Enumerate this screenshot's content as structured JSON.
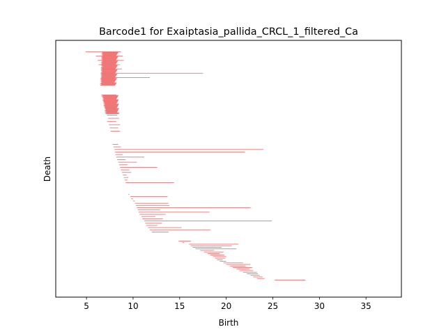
{
  "chart_data": {
    "type": "barcode",
    "title": "Barcode1 for Exaiptasia_pallida_CRCL_1_filtered_Ca",
    "xlabel": "Birth",
    "ylabel": "Death",
    "xlim": [
      1.7,
      38.8
    ],
    "xticks": [
      5,
      10,
      15,
      20,
      25,
      30,
      35
    ],
    "grid": false,
    "bar_color": "#f07474",
    "bars_top_to_bottom": {
      "cluster1_bulk": {
        "count": 70,
        "birth_start": 6.7,
        "birth_end": 6.55,
        "death_start": 8.3,
        "death_end": 8.1
      },
      "cluster1_extras": [
        {
          "birth": 4.9,
          "death": 8.7
        },
        {
          "birth": 6.0,
          "death": 8.9
        },
        {
          "birth": 6.2,
          "death": 9.0
        },
        {
          "birth": 6.3,
          "death": 8.6
        },
        {
          "birth": 6.7,
          "death": 8.8
        },
        {
          "birth": 6.8,
          "death": 17.5
        },
        {
          "birth": 6.6,
          "death": 11.8
        }
      ],
      "cluster2_bulk": {
        "count": 40,
        "birth_start": 6.7,
        "birth_end": 7.1,
        "death_start": 8.3,
        "death_end": 8.4
      },
      "cluster2_sparse": [
        {
          "birth": 7.2,
          "death": 8.3
        },
        {
          "birth": 7.3,
          "death": 8.5
        },
        {
          "birth": 7.2,
          "death": 8.2
        },
        {
          "birth": 7.4,
          "death": 8.6
        },
        {
          "birth": 7.5,
          "death": 8.4
        },
        {
          "birth": 7.6,
          "death": 8.6
        }
      ],
      "cluster3_bars": [
        {
          "birth": 7.8,
          "death": 8.4
        },
        {
          "birth": 7.9,
          "death": 8.7
        },
        {
          "birth": 8.0,
          "death": 24.0
        },
        {
          "birth": 8.05,
          "death": 22.0
        },
        {
          "birth": 8.1,
          "death": 8.9
        },
        {
          "birth": 8.2,
          "death": 11.2
        },
        {
          "birth": 8.3,
          "death": 9.2
        },
        {
          "birth": 8.4,
          "death": 10.4
        },
        {
          "birth": 8.5,
          "death": 9.4
        },
        {
          "birth": 8.6,
          "death": 12.6
        },
        {
          "birth": 8.7,
          "death": 9.6
        },
        {
          "birth": 8.8,
          "death": 9.8
        },
        {
          "birth": 8.9,
          "death": 9.3
        },
        {
          "birth": 9.0,
          "death": 9.5
        },
        {
          "birth": 9.1,
          "death": 9.4
        },
        {
          "birth": 9.2,
          "death": 14.4
        }
      ],
      "cluster4_bars": [
        {
          "birth": 9.5,
          "death": 9.6
        },
        {
          "birth": 9.7,
          "death": 13.7
        },
        {
          "birth": 9.8,
          "death": 10.0
        },
        {
          "birth": 10.0,
          "death": 10.2
        },
        {
          "birth": 10.2,
          "death": 13.8
        },
        {
          "birth": 10.3,
          "death": 13.9
        },
        {
          "birth": 10.4,
          "death": 22.6
        },
        {
          "birth": 10.5,
          "death": 12.9
        },
        {
          "birth": 10.6,
          "death": 18.2
        },
        {
          "birth": 10.7,
          "death": 13.5
        },
        {
          "birth": 10.9,
          "death": 12.4
        },
        {
          "birth": 11.0,
          "death": 13.2
        },
        {
          "birth": 11.2,
          "death": 24.9
        },
        {
          "birth": 11.3,
          "death": 13.1
        },
        {
          "birth": 11.4,
          "death": 12.6
        },
        {
          "birth": 11.6,
          "death": 15.2
        },
        {
          "birth": 11.8,
          "death": 18.3
        },
        {
          "birth": 12.0,
          "death": 13.8
        }
      ],
      "cluster5_bars": [
        {
          "birth": 14.9,
          "death": 16.2
        },
        {
          "birth": 15.3,
          "death": 15.5
        },
        {
          "birth": 16.0,
          "death": 21.3
        },
        {
          "birth": 16.2,
          "death": 20.6
        },
        {
          "birth": 16.4,
          "death": 19.5
        },
        {
          "birth": 16.7,
          "death": 21.1
        },
        {
          "birth": 17.2,
          "death": 18.7
        },
        {
          "birth": 17.6,
          "death": 19.7
        },
        {
          "birth": 18.0,
          "death": 19.3
        },
        {
          "birth": 18.3,
          "death": 19.8
        },
        {
          "birth": 18.6,
          "death": 20.0
        },
        {
          "birth": 18.8,
          "death": 19.9
        },
        {
          "birth": 19.0,
          "death": 19.6
        },
        {
          "birth": 19.3,
          "death": 20.0
        },
        {
          "birth": 19.7,
          "death": 21.8
        },
        {
          "birth": 20.0,
          "death": 22.6
        },
        {
          "birth": 20.4,
          "death": 22.1
        },
        {
          "birth": 20.7,
          "death": 22.8
        },
        {
          "birth": 21.1,
          "death": 22.5
        },
        {
          "birth": 21.4,
          "death": 22.9
        },
        {
          "birth": 21.8,
          "death": 23.3
        },
        {
          "birth": 22.2,
          "death": 23.4
        },
        {
          "birth": 22.6,
          "death": 23.6
        },
        {
          "birth": 22.9,
          "death": 23.9
        },
        {
          "birth": 23.3,
          "death": 24.1
        },
        {
          "birth": 25.2,
          "death": 28.5
        }
      ]
    }
  }
}
